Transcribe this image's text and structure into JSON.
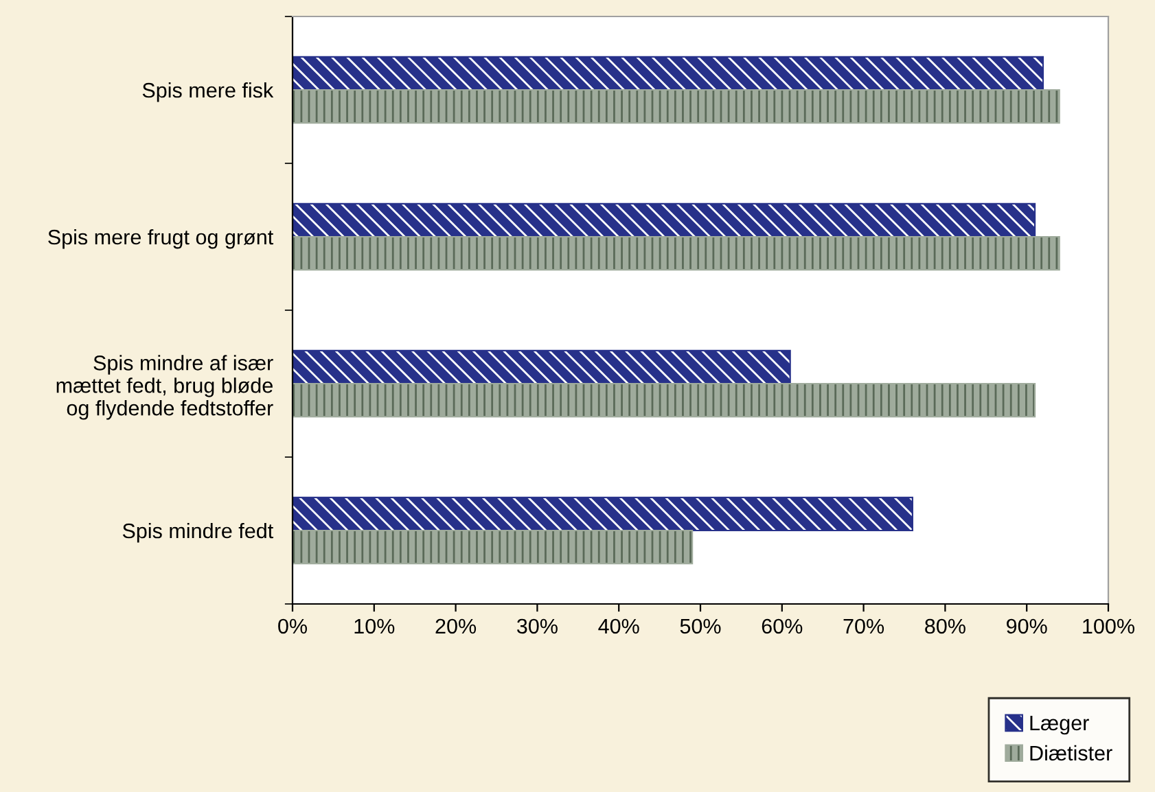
{
  "chart_data": {
    "type": "bar",
    "orientation": "horizontal",
    "categories": [
      "Spis mere fisk",
      "Spis mere frugt og grønt",
      "Spis mindre af især\nmættet fedt, brug bløde\nog flydende fedtstoffer",
      "Spis mindre fedt"
    ],
    "series": [
      {
        "name": "Læger",
        "color": "#27318a",
        "values": [
          92,
          91,
          61,
          76
        ]
      },
      {
        "name": "Diætister",
        "color": "#9fab9c",
        "values": [
          94,
          94,
          91,
          49
        ]
      }
    ],
    "xlim": [
      0,
      100
    ],
    "xticks": [
      {
        "value": 0,
        "label": "0%"
      },
      {
        "value": 10,
        "label": "10%"
      },
      {
        "value": 20,
        "label": "20%"
      },
      {
        "value": 30,
        "label": "30%"
      },
      {
        "value": 40,
        "label": "40%"
      },
      {
        "value": 50,
        "label": "50%"
      },
      {
        "value": 60,
        "label": "60%"
      },
      {
        "value": 70,
        "label": "70%"
      },
      {
        "value": 80,
        "label": "80%"
      },
      {
        "value": 90,
        "label": "90%"
      },
      {
        "value": 100,
        "label": "100%"
      }
    ],
    "grid": false,
    "legend": "bottom right"
  }
}
